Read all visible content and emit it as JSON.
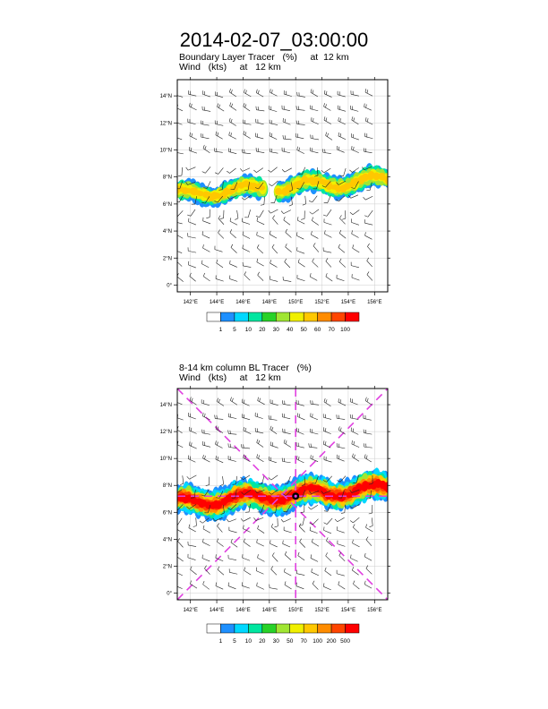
{
  "title": "2014-02-07_03:00:00",
  "panels": [
    {
      "subtitle_line1": "Boundary Layer Tracer   (%)     at  12 km",
      "subtitle_line2": "Wind   (kts)     at   12 km"
    },
    {
      "subtitle_line1": "8-14 km column BL Tracer   (%)",
      "subtitle_line2": "Wind   (kts)     at   12 km"
    }
  ],
  "chart_data": [
    {
      "type": "heatmap",
      "title": "Boundary Layer Tracer (%) at 12 km",
      "xlabel": "",
      "ylabel": "",
      "x_ticks": [
        "142°E",
        "144°E",
        "146°E",
        "148°E",
        "150°E",
        "152°E",
        "154°E",
        "156°E"
      ],
      "y_ticks": [
        "0°",
        "2°N",
        "4°N",
        "6°N",
        "8°N",
        "10°N",
        "12°N",
        "14°N"
      ],
      "xlim": [
        141,
        157
      ],
      "ylim": [
        -0.5,
        15.2
      ],
      "colorbar_levels": [
        "1",
        "5",
        "10",
        "20",
        "30",
        "40",
        "50",
        "60",
        "70",
        "100"
      ],
      "colorbar_colors": [
        "#ffffff",
        "#1e90ff",
        "#00d8ff",
        "#00e6a0",
        "#28d228",
        "#a0e632",
        "#f0f000",
        "#ffc800",
        "#ff8c00",
        "#ff4500",
        "#ff0000"
      ],
      "field_band": {
        "lon_range": [
          141,
          157
        ],
        "lat_center_west": 6.7,
        "lat_center_east": 7.8,
        "width_deg": 1.6
      },
      "wind_overlay": "barbs (kts) at 12 km"
    },
    {
      "type": "heatmap",
      "title": "8-14 km column BL Tracer (%)",
      "xlabel": "",
      "ylabel": "",
      "x_ticks": [
        "142°E",
        "144°E",
        "146°E",
        "148°E",
        "150°E",
        "152°E",
        "154°E",
        "156°E"
      ],
      "y_ticks": [
        "0°",
        "2°N",
        "4°N",
        "6°N",
        "8°N",
        "10°N",
        "12°N",
        "14°N"
      ],
      "xlim": [
        141,
        157
      ],
      "ylim": [
        -0.5,
        15.2
      ],
      "colorbar_levels": [
        "1",
        "5",
        "10",
        "20",
        "30",
        "50",
        "70",
        "100",
        "200",
        "500"
      ],
      "colorbar_colors": [
        "#ffffff",
        "#1e90ff",
        "#00d8ff",
        "#00e6a0",
        "#28d228",
        "#a0e632",
        "#f0f000",
        "#ffc800",
        "#ff8c00",
        "#ff4500",
        "#ff0000"
      ],
      "field_band": {
        "lon_range": [
          141,
          157
        ],
        "lat_center_west": 6.7,
        "lat_center_east": 7.8,
        "width_deg": 2.2
      },
      "center_marker": {
        "lon": 150.0,
        "lat": 7.2
      },
      "dashed_lines": "magenta cross and diagonals through center",
      "wind_overlay": "barbs (kts) at 12 km"
    }
  ]
}
